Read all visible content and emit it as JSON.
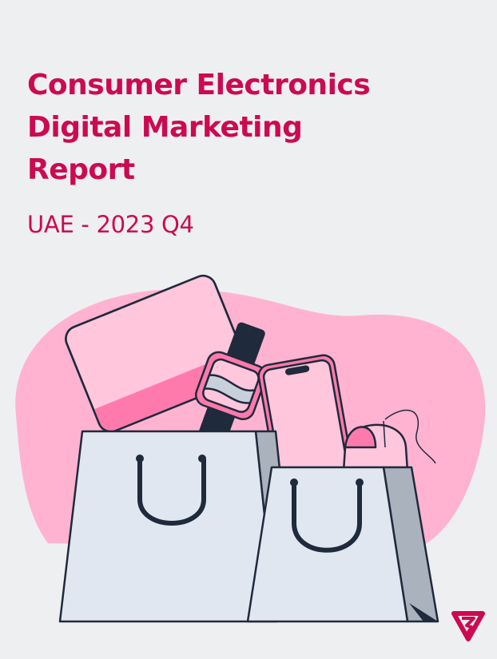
{
  "cover": {
    "title_lines": [
      "Consumer Electronics",
      "Digital Marketing",
      "Report"
    ],
    "subtitle": "UAE - 2023 Q4"
  },
  "colors": {
    "accent": "#cc0a4f",
    "background": "#eeeff1",
    "blob": "#ffb3d1",
    "bag": "#e1e7f0",
    "bag_side": "#a9b2bd",
    "outline": "#1f2a3c"
  },
  "illustration": {
    "items": [
      "laptop",
      "smartwatch",
      "smartphone",
      "mouse",
      "shopping-bag-large",
      "shopping-bag-small"
    ]
  },
  "logo": {
    "icon": "brand-triangle-logo"
  }
}
